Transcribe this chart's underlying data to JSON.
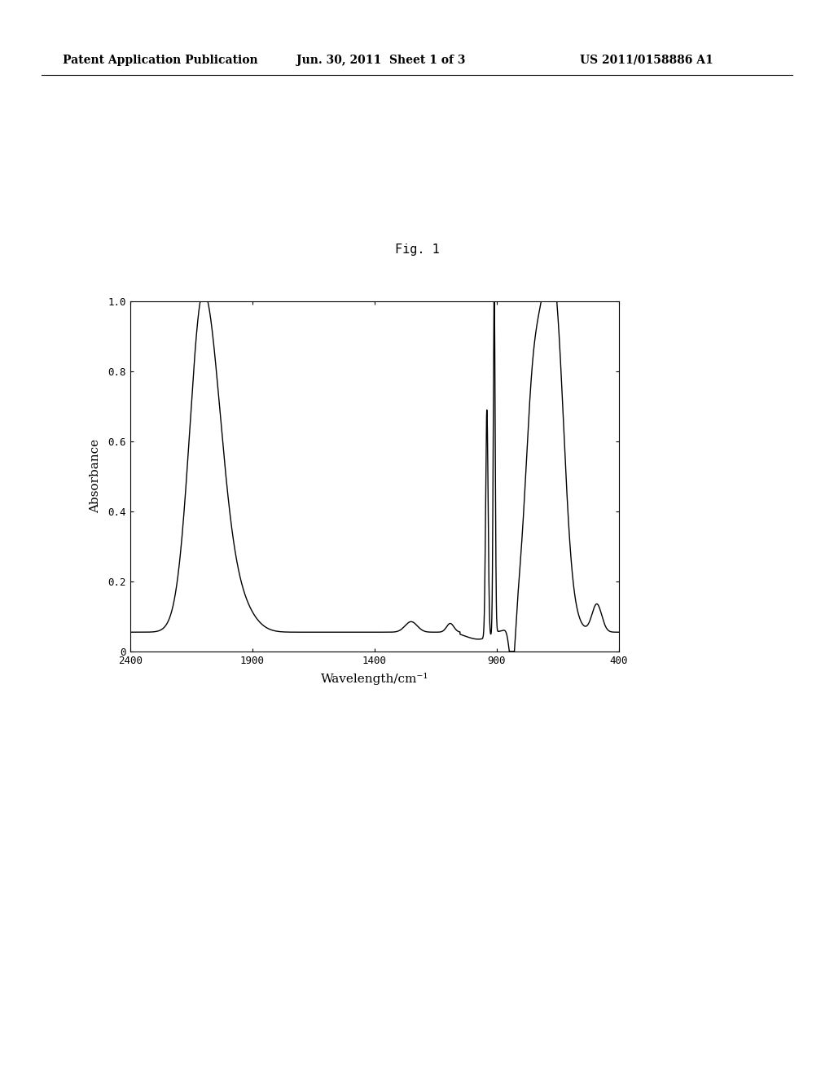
{
  "header_left": "Patent Application Publication",
  "header_center": "Jun. 30, 2011  Sheet 1 of 3",
  "header_right": "US 2011/0158886 A1",
  "fig_label": "Fig. 1",
  "xlabel": "Wavelength/cm⁻¹",
  "ylabel": "Absorbance",
  "xlim": [
    2400,
    400
  ],
  "ylim": [
    0,
    1.0
  ],
  "yticks": [
    0,
    0.2,
    0.4,
    0.6,
    0.8,
    1.0
  ],
  "xticks": [
    2400,
    1900,
    1400,
    900,
    400
  ],
  "background_color": "#ffffff",
  "line_color": "#000000",
  "header_fontsize": 10,
  "fig_label_fontsize": 11,
  "axis_label_fontsize": 11,
  "tick_fontsize": 9
}
